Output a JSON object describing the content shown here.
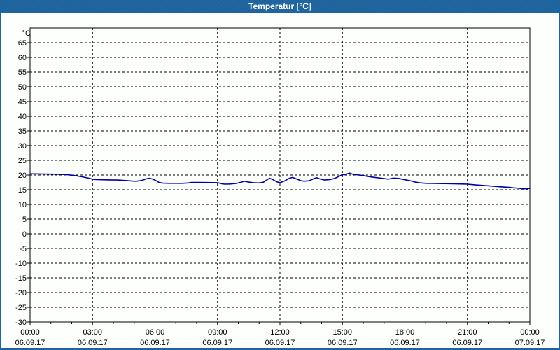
{
  "window": {
    "title": "Temperatur [°C]"
  },
  "colors": {
    "titlebar": "#2066a0",
    "window_border": "#1f649c",
    "plot_background": "#fdfffd",
    "plot_border": "#000000",
    "grid": "#000000",
    "tick_text": "#000000",
    "series_line": "#0000a0"
  },
  "chart_data": {
    "type": "line",
    "title": "Temperatur [°C]",
    "y_unit_label": "°C",
    "ylim": [
      -30,
      70
    ],
    "y_tick_values": [
      65,
      60,
      55,
      50,
      45,
      40,
      35,
      30,
      25,
      20,
      15,
      10,
      5,
      0,
      -5,
      -10,
      -15,
      -20,
      -25,
      -30
    ],
    "xlim_hours": [
      0,
      24
    ],
    "x_major_ticks": [
      {
        "hour": 0,
        "time": "00:00",
        "date": "06.09.17"
      },
      {
        "hour": 3,
        "time": "03:00",
        "date": "06.09.17"
      },
      {
        "hour": 6,
        "time": "06:00",
        "date": "06.09.17"
      },
      {
        "hour": 9,
        "time": "09:00",
        "date": "06.09.17"
      },
      {
        "hour": 12,
        "time": "12:00",
        "date": "06.09.17"
      },
      {
        "hour": 15,
        "time": "15:00",
        "date": "06.09.17"
      },
      {
        "hour": 18,
        "time": "18:00",
        "date": "06.09.17"
      },
      {
        "hour": 21,
        "time": "21:00",
        "date": "06.09.17"
      },
      {
        "hour": 24,
        "time": "00:00",
        "date": "07.09.17"
      }
    ],
    "x_minor_interval_hours": 1,
    "grid_style": "dashed",
    "legend": "none",
    "series": [
      {
        "name": "Temperatur",
        "color": "#0000a0",
        "points": [
          [
            0,
            20.4
          ],
          [
            0.3,
            20.4
          ],
          [
            0.6,
            20.35
          ],
          [
            1,
            20.3
          ],
          [
            1.5,
            20.25
          ],
          [
            1.8,
            20.1
          ],
          [
            2.1,
            19.85
          ],
          [
            2.5,
            19.4
          ],
          [
            2.8,
            18.95
          ],
          [
            3,
            18.6
          ],
          [
            3.2,
            18.45
          ],
          [
            3.5,
            18.4
          ],
          [
            3.8,
            18.35
          ],
          [
            4.2,
            18.3
          ],
          [
            4.6,
            18.15
          ],
          [
            4.9,
            17.95
          ],
          [
            5.1,
            17.9
          ],
          [
            5.35,
            18.15
          ],
          [
            5.6,
            18.75
          ],
          [
            5.75,
            18.9
          ],
          [
            5.9,
            18.6
          ],
          [
            6.05,
            18.1
          ],
          [
            6.2,
            17.45
          ],
          [
            6.4,
            17.25
          ],
          [
            6.7,
            17.2
          ],
          [
            7,
            17.2
          ],
          [
            7.3,
            17.2
          ],
          [
            7.6,
            17.3
          ],
          [
            7.75,
            17.5
          ],
          [
            8.1,
            17.5
          ],
          [
            8.5,
            17.45
          ],
          [
            9,
            17.4
          ],
          [
            9.2,
            17.05
          ],
          [
            9.35,
            16.9
          ],
          [
            9.6,
            16.95
          ],
          [
            9.9,
            17.15
          ],
          [
            10.1,
            17.5
          ],
          [
            10.3,
            17.9
          ],
          [
            10.5,
            17.6
          ],
          [
            10.7,
            17.4
          ],
          [
            11,
            17.3
          ],
          [
            11.2,
            17.55
          ],
          [
            11.4,
            18.5
          ],
          [
            11.5,
            18.9
          ],
          [
            11.65,
            18.5
          ],
          [
            11.85,
            17.7
          ],
          [
            12,
            17.4
          ],
          [
            12.2,
            17.9
          ],
          [
            12.45,
            18.9
          ],
          [
            12.6,
            19.2
          ],
          [
            12.75,
            18.8
          ],
          [
            13,
            18.1
          ],
          [
            13.15,
            17.9
          ],
          [
            13.4,
            18.05
          ],
          [
            13.6,
            18.7
          ],
          [
            13.75,
            19.1
          ],
          [
            13.95,
            18.6
          ],
          [
            14.15,
            18.3
          ],
          [
            14.4,
            18.45
          ],
          [
            14.65,
            18.9
          ],
          [
            14.85,
            19.6
          ],
          [
            15,
            20.2
          ],
          [
            15.1,
            20.1
          ],
          [
            15.25,
            20.45
          ],
          [
            15.35,
            20.65
          ],
          [
            15.5,
            20.25
          ],
          [
            15.7,
            20.1
          ],
          [
            16,
            19.8
          ],
          [
            16.3,
            19.45
          ],
          [
            16.6,
            19.15
          ],
          [
            17,
            18.8
          ],
          [
            17.2,
            18.6
          ],
          [
            17.45,
            18.95
          ],
          [
            17.7,
            18.85
          ],
          [
            18,
            18.4
          ],
          [
            18.3,
            18
          ],
          [
            18.5,
            17.6
          ],
          [
            18.7,
            17.35
          ],
          [
            19,
            17.2
          ],
          [
            19.4,
            17.15
          ],
          [
            19.8,
            17.1
          ],
          [
            20.3,
            17.05
          ],
          [
            20.8,
            16.95
          ],
          [
            21,
            16.9
          ],
          [
            21.4,
            16.65
          ],
          [
            21.8,
            16.45
          ],
          [
            22.2,
            16.25
          ],
          [
            22.6,
            16
          ],
          [
            23,
            15.8
          ],
          [
            23.3,
            15.6
          ],
          [
            23.6,
            15.4
          ],
          [
            23.85,
            15.3
          ],
          [
            24,
            15.5
          ]
        ]
      }
    ]
  }
}
